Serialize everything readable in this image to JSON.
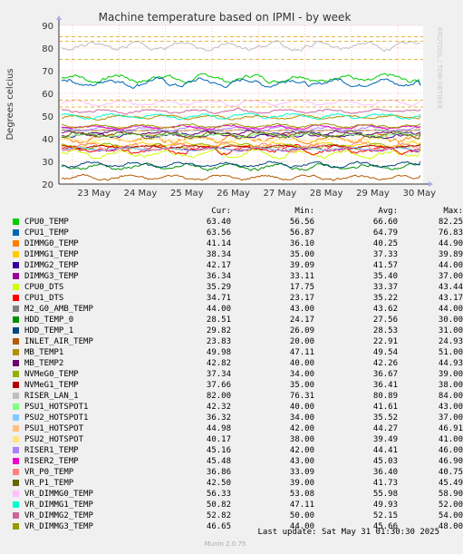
{
  "chart_data": {
    "type": "line",
    "title": "Machine temperature based on IPMI - by week",
    "ylabel": "Degrees celcius",
    "ylim": [
      20,
      90
    ],
    "yticks": [
      "20",
      "30",
      "40",
      "50",
      "60",
      "70",
      "80",
      "90"
    ],
    "xticks": [
      "23 May",
      "24 May",
      "25 May",
      "26 May",
      "27 May",
      "28 May",
      "29 May",
      "30 May"
    ],
    "grid": true,
    "legend_headers": {
      "cur": "Cur:",
      "min": "Min:",
      "avg": "Avg:",
      "max": "Max:"
    },
    "series": [
      {
        "name": "CPU0_TEMP",
        "color": "#00cc00",
        "cur": "63.40",
        "min": "56.56",
        "avg": "66.60",
        "max": "82.25"
      },
      {
        "name": "CPU1_TEMP",
        "color": "#0066b3",
        "cur": "63.56",
        "min": "56.87",
        "avg": "64.79",
        "max": "76.83"
      },
      {
        "name": "DIMMG0_TEMP",
        "color": "#ff8000",
        "cur": "41.14",
        "min": "36.10",
        "avg": "40.25",
        "max": "44.90"
      },
      {
        "name": "DIMMG1_TEMP",
        "color": "#ffcc00",
        "cur": "38.34",
        "min": "35.00",
        "avg": "37.33",
        "max": "39.89"
      },
      {
        "name": "DIMMG2_TEMP",
        "color": "#330099",
        "cur": "42.17",
        "min": "39.09",
        "avg": "41.57",
        "max": "44.00"
      },
      {
        "name": "DIMMG3_TEMP",
        "color": "#990099",
        "cur": "36.34",
        "min": "33.11",
        "avg": "35.40",
        "max": "37.00"
      },
      {
        "name": "CPU0_DTS",
        "color": "#ccff00",
        "cur": "35.29",
        "min": "17.75",
        "avg": "33.37",
        "max": "43.44"
      },
      {
        "name": "CPU1_DTS",
        "color": "#ff0000",
        "cur": "34.71",
        "min": "23.17",
        "avg": "35.22",
        "max": "43.17"
      },
      {
        "name": "M2_G0_AMB_TEMP",
        "color": "#808080",
        "cur": "44.00",
        "min": "43.00",
        "avg": "43.62",
        "max": "44.00"
      },
      {
        "name": "HDD_TEMP_0",
        "color": "#008f00",
        "cur": "28.51",
        "min": "24.17",
        "avg": "27.56",
        "max": "30.00"
      },
      {
        "name": "HDD_TEMP_1",
        "color": "#00487d",
        "cur": "29.82",
        "min": "26.09",
        "avg": "28.53",
        "max": "31.00"
      },
      {
        "name": "INLET_AIR_TEMP",
        "color": "#b35a00",
        "cur": "23.83",
        "min": "20.00",
        "avg": "22.91",
        "max": "24.93"
      },
      {
        "name": "MB_TEMP1",
        "color": "#b38f00",
        "cur": "49.98",
        "min": "47.11",
        "avg": "49.54",
        "max": "51.00"
      },
      {
        "name": "MB_TEMP2",
        "color": "#6b006b",
        "cur": "42.82",
        "min": "40.00",
        "avg": "42.26",
        "max": "44.93"
      },
      {
        "name": "NVMeG0_TEMP",
        "color": "#8fb300",
        "cur": "37.34",
        "min": "34.00",
        "avg": "36.67",
        "max": "39.00"
      },
      {
        "name": "NVMeG1_TEMP",
        "color": "#b30000",
        "cur": "37.66",
        "min": "35.00",
        "avg": "36.41",
        "max": "38.00"
      },
      {
        "name": "RISER_LAN_1",
        "color": "#bebebe",
        "cur": "82.00",
        "min": "76.31",
        "avg": "80.89",
        "max": "84.00"
      },
      {
        "name": "PSU1_HOTSPOT1",
        "color": "#80ff80",
        "cur": "42.32",
        "min": "40.00",
        "avg": "41.61",
        "max": "43.00"
      },
      {
        "name": "PSU2_HOTSPOT1",
        "color": "#80c9ff",
        "cur": "36.32",
        "min": "34.00",
        "avg": "35.52",
        "max": "37.00"
      },
      {
        "name": "PSU1_HOTSPOT",
        "color": "#ffc080",
        "cur": "44.98",
        "min": "42.00",
        "avg": "44.27",
        "max": "46.91"
      },
      {
        "name": "PSU2_HOTSPOT",
        "color": "#ffe680",
        "cur": "40.17",
        "min": "38.00",
        "avg": "39.49",
        "max": "41.00"
      },
      {
        "name": "RISER1_TEMP",
        "color": "#aa80ff",
        "cur": "45.16",
        "min": "42.00",
        "avg": "44.41",
        "max": "46.00"
      },
      {
        "name": "RISER2_TEMP",
        "color": "#ee00cc",
        "cur": "45.48",
        "avg": "45.03",
        "min": "43.00",
        "max": "46.90"
      },
      {
        "name": "VR_P0_TEMP",
        "color": "#ff8080",
        "cur": "36.86",
        "min": "33.09",
        "avg": "36.40",
        "max": "40.75"
      },
      {
        "name": "VR_P1_TEMP",
        "color": "#666600",
        "cur": "42.50",
        "min": "39.00",
        "avg": "41.73",
        "max": "45.49"
      },
      {
        "name": "VR_DIMMG0_TEMP",
        "color": "#ffbfff",
        "cur": "56.33",
        "min": "53.08",
        "avg": "55.98",
        "max": "58.90"
      },
      {
        "name": "VR_DIMMG1_TEMP",
        "color": "#00ffcc",
        "cur": "50.82",
        "min": "47.11",
        "avg": "49.93",
        "max": "52.00"
      },
      {
        "name": "VR_DIMMG2_TEMP",
        "color": "#cc6699",
        "cur": "52.82",
        "min": "50.00",
        "avg": "52.15",
        "max": "54.00"
      },
      {
        "name": "VR_DIMMG3_TEMP",
        "color": "#999900",
        "cur": "46.65",
        "min": "44.00",
        "avg": "45.66",
        "max": "48.00"
      }
    ]
  },
  "footer": {
    "last_update": "Last update: Sat May 31 01:30:30 2025",
    "munin": "Munin 2.0.75",
    "rrdtool": "RRDTOOL / TOBI OETIKER"
  }
}
